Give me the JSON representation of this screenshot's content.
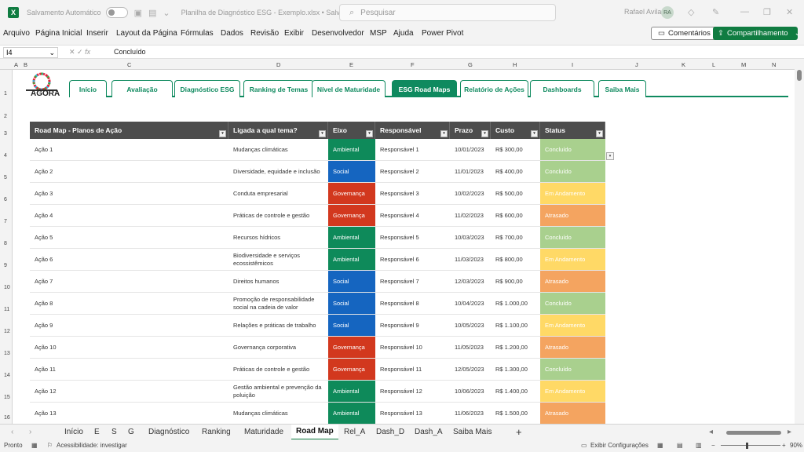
{
  "titlebar": {
    "autosave_label": "Salvamento Automático",
    "document_title": "Planilha de Diagnóstico ESG - Exemplo.xlsx • Salvo",
    "search_placeholder": "Pesquisar",
    "user_name": "Rafael Avila",
    "user_initials": "RA"
  },
  "ribbon": {
    "tabs": [
      "Arquivo",
      "Página Inicial",
      "Inserir",
      "Layout da Página",
      "Fórmulas",
      "Dados",
      "Revisão",
      "Exibir",
      "Desenvolvedor",
      "MSP",
      "Ajuda",
      "Power Pivot"
    ],
    "comments_label": "Comentários",
    "share_label": "Compartilhamento"
  },
  "formula_bar": {
    "cell_ref": "I4",
    "value": "Concluído"
  },
  "columns": [
    "A",
    "B",
    "C",
    "D",
    "E",
    "F",
    "G",
    "H",
    "I",
    "J",
    "K",
    "L",
    "M",
    "N"
  ],
  "rows": [
    "1",
    "2",
    "3",
    "4",
    "5",
    "6",
    "7",
    "8",
    "9",
    "10",
    "11",
    "12",
    "13",
    "14",
    "15",
    "16"
  ],
  "logo_text": "AGORA",
  "nav_buttons": [
    "Início",
    "Avaliação",
    "Diagnóstico ESG",
    "Ranking de Temas",
    "Nível de Maturidade",
    "ESG Road Maps",
    "Relatório de Ações",
    "Dashboards",
    "Saiba Mais"
  ],
  "nav_active": "ESG Road Maps",
  "table": {
    "headers": [
      "Road Map - Planos de Ação",
      "Ligada a qual tema?",
      "Eixo",
      "Responsável",
      "Prazo",
      "Custo",
      "Status"
    ],
    "rows": [
      {
        "acao": "Ação 1",
        "tema": "Mudanças climáticas",
        "eixo": "Ambiental",
        "resp": "Responsável 1",
        "prazo": "10/01/2023",
        "custo": "R$ 300,00",
        "status": "Concluído"
      },
      {
        "acao": "Ação 2",
        "tema": "Diversidade, equidade e inclusão",
        "eixo": "Social",
        "resp": "Responsável 2",
        "prazo": "11/01/2023",
        "custo": "R$ 400,00",
        "status": "Concluído"
      },
      {
        "acao": "Ação 3",
        "tema": "Conduta empresarial",
        "eixo": "Governança",
        "resp": "Responsável 3",
        "prazo": "10/02/2023",
        "custo": "R$ 500,00",
        "status": "Em Andamento"
      },
      {
        "acao": "Ação 4",
        "tema": "Práticas de controle e gestão",
        "eixo": "Governança",
        "resp": "Responsável 4",
        "prazo": "11/02/2023",
        "custo": "R$ 600,00",
        "status": "Atrasado"
      },
      {
        "acao": "Ação 5",
        "tema": "Recursos hídricos",
        "eixo": "Ambiental",
        "resp": "Responsável 5",
        "prazo": "10/03/2023",
        "custo": "R$ 700,00",
        "status": "Concluído"
      },
      {
        "acao": "Ação 6",
        "tema": "Biodiversidade e serviços ecossistêmicos",
        "eixo": "Ambiental",
        "resp": "Responsável 6",
        "prazo": "11/03/2023",
        "custo": "R$ 800,00",
        "status": "Em Andamento"
      },
      {
        "acao": "Ação 7",
        "tema": "Direitos humanos",
        "eixo": "Social",
        "resp": "Responsável 7",
        "prazo": "12/03/2023",
        "custo": "R$ 900,00",
        "status": "Atrasado"
      },
      {
        "acao": "Ação 8",
        "tema": "Promoção de responsabilidade social na cadeia de valor",
        "eixo": "Social",
        "resp": "Responsável 8",
        "prazo": "10/04/2023",
        "custo": "R$ 1.000,00",
        "status": "Concluído"
      },
      {
        "acao": "Ação 9",
        "tema": "Relações e práticas de trabalho",
        "eixo": "Social",
        "resp": "Responsável 9",
        "prazo": "10/05/2023",
        "custo": "R$ 1.100,00",
        "status": "Em Andamento"
      },
      {
        "acao": "Ação 10",
        "tema": "Governança corporativa",
        "eixo": "Governança",
        "resp": "Responsável 10",
        "prazo": "11/05/2023",
        "custo": "R$ 1.200,00",
        "status": "Atrasado"
      },
      {
        "acao": "Ação 11",
        "tema": "Práticas de controle e gestão",
        "eixo": "Governança",
        "resp": "Responsável 11",
        "prazo": "12/05/2023",
        "custo": "R$ 1.300,00",
        "status": "Concluído"
      },
      {
        "acao": "Ação 12",
        "tema": "Gestão ambiental e prevenção da poluição",
        "eixo": "Ambiental",
        "resp": "Responsável 12",
        "prazo": "10/06/2023",
        "custo": "R$ 1.400,00",
        "status": "Em Andamento"
      },
      {
        "acao": "Ação 13",
        "tema": "Mudanças climáticas",
        "eixo": "Ambiental",
        "resp": "Responsável 13",
        "prazo": "11/06/2023",
        "custo": "R$ 1.500,00",
        "status": "Atrasado"
      }
    ]
  },
  "colors": {
    "Ambiental": "#0e8a5a",
    "Social": "#1565c0",
    "Governança": "#d2381e",
    "Concluído": "#a9d08e",
    "Em Andamento": "#ffd966",
    "Atrasado": "#f4a460",
    "accent": "#107c41"
  },
  "sheet_tabs": [
    "Início",
    "E",
    "S",
    "G",
    "Diagnóstico",
    "Ranking",
    "Maturidade",
    "Road Map",
    "Rel_A",
    "Dash_D",
    "Dash_A",
    "Saiba Mais"
  ],
  "active_sheet": "Road Map",
  "statusbar": {
    "ready": "Pronto",
    "accessibility": "Acessibilidade: investigar",
    "display_settings": "Exibir Configurações",
    "zoom": "90%"
  }
}
